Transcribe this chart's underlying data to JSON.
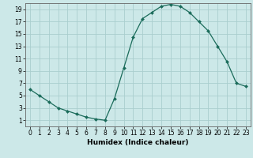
{
  "x": [
    0,
    1,
    2,
    3,
    4,
    5,
    6,
    7,
    8,
    9,
    10,
    11,
    12,
    13,
    14,
    15,
    16,
    17,
    18,
    19,
    20,
    21,
    22,
    23
  ],
  "y": [
    6,
    5,
    4,
    3,
    2.5,
    2,
    1.5,
    1.2,
    1,
    4.5,
    9.5,
    14.5,
    17.5,
    18.5,
    19.5,
    19.8,
    19.5,
    18.5,
    17,
    15.5,
    13,
    10.5,
    7,
    6.5
  ],
  "line_color": "#1a6b5a",
  "marker": "D",
  "marker_size": 2,
  "bg_color": "#cce8e8",
  "grid_color": "#aacece",
  "xlabel": "Humidex (Indice chaleur)",
  "xlim": [
    -0.5,
    23.5
  ],
  "ylim": [
    0,
    20
  ],
  "yticks": [
    1,
    3,
    5,
    7,
    9,
    11,
    13,
    15,
    17,
    19
  ],
  "xticks": [
    0,
    1,
    2,
    3,
    4,
    5,
    6,
    7,
    8,
    9,
    10,
    11,
    12,
    13,
    14,
    15,
    16,
    17,
    18,
    19,
    20,
    21,
    22,
    23
  ],
  "axis_fontsize": 6.5,
  "tick_fontsize": 5.5
}
